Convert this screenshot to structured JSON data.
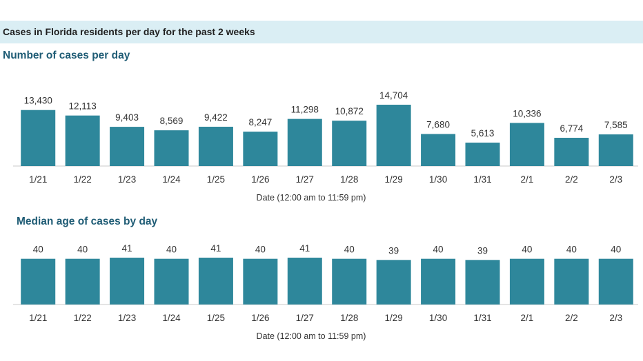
{
  "banner": {
    "title": "Cases in Florida residents per day for the past 2 weeks",
    "background_color": "#daeef4"
  },
  "bar_color": "#2e879b",
  "chart_data": [
    {
      "type": "bar",
      "title": "Number of cases per day",
      "xlabel": "Date (12:00 am to 11:59 pm)",
      "ylabel": "",
      "categories": [
        "1/21",
        "1/22",
        "1/23",
        "1/24",
        "1/25",
        "1/26",
        "1/27",
        "1/28",
        "1/29",
        "1/30",
        "1/31",
        "2/1",
        "2/2",
        "2/3"
      ],
      "values": [
        13430,
        12113,
        9403,
        8569,
        9422,
        8247,
        11298,
        10872,
        14704,
        7680,
        5613,
        10336,
        6774,
        7585
      ],
      "data_labels": [
        "13,430",
        "12,113",
        "9,403",
        "8,569",
        "9,422",
        "8,247",
        "11,298",
        "10,872",
        "14,704",
        "7,680",
        "5,613",
        "10,336",
        "6,774",
        "7,585"
      ],
      "ylim": [
        0,
        14704
      ],
      "grid": false,
      "color": "#2e879b"
    },
    {
      "type": "bar",
      "title": "Median age of cases by day",
      "xlabel": "Date (12:00 am to 11:59 pm)",
      "ylabel": "",
      "categories": [
        "1/21",
        "1/22",
        "1/23",
        "1/24",
        "1/25",
        "1/26",
        "1/27",
        "1/28",
        "1/29",
        "1/30",
        "1/31",
        "2/1",
        "2/2",
        "2/3"
      ],
      "values": [
        40,
        40,
        41,
        40,
        41,
        40,
        41,
        40,
        39,
        40,
        39,
        40,
        40,
        40
      ],
      "data_labels": [
        "40",
        "40",
        "41",
        "40",
        "41",
        "40",
        "41",
        "40",
        "39",
        "40",
        "39",
        "40",
        "40",
        "40"
      ],
      "ylim": [
        0,
        41
      ],
      "grid": false,
      "color": "#2e879b"
    }
  ]
}
